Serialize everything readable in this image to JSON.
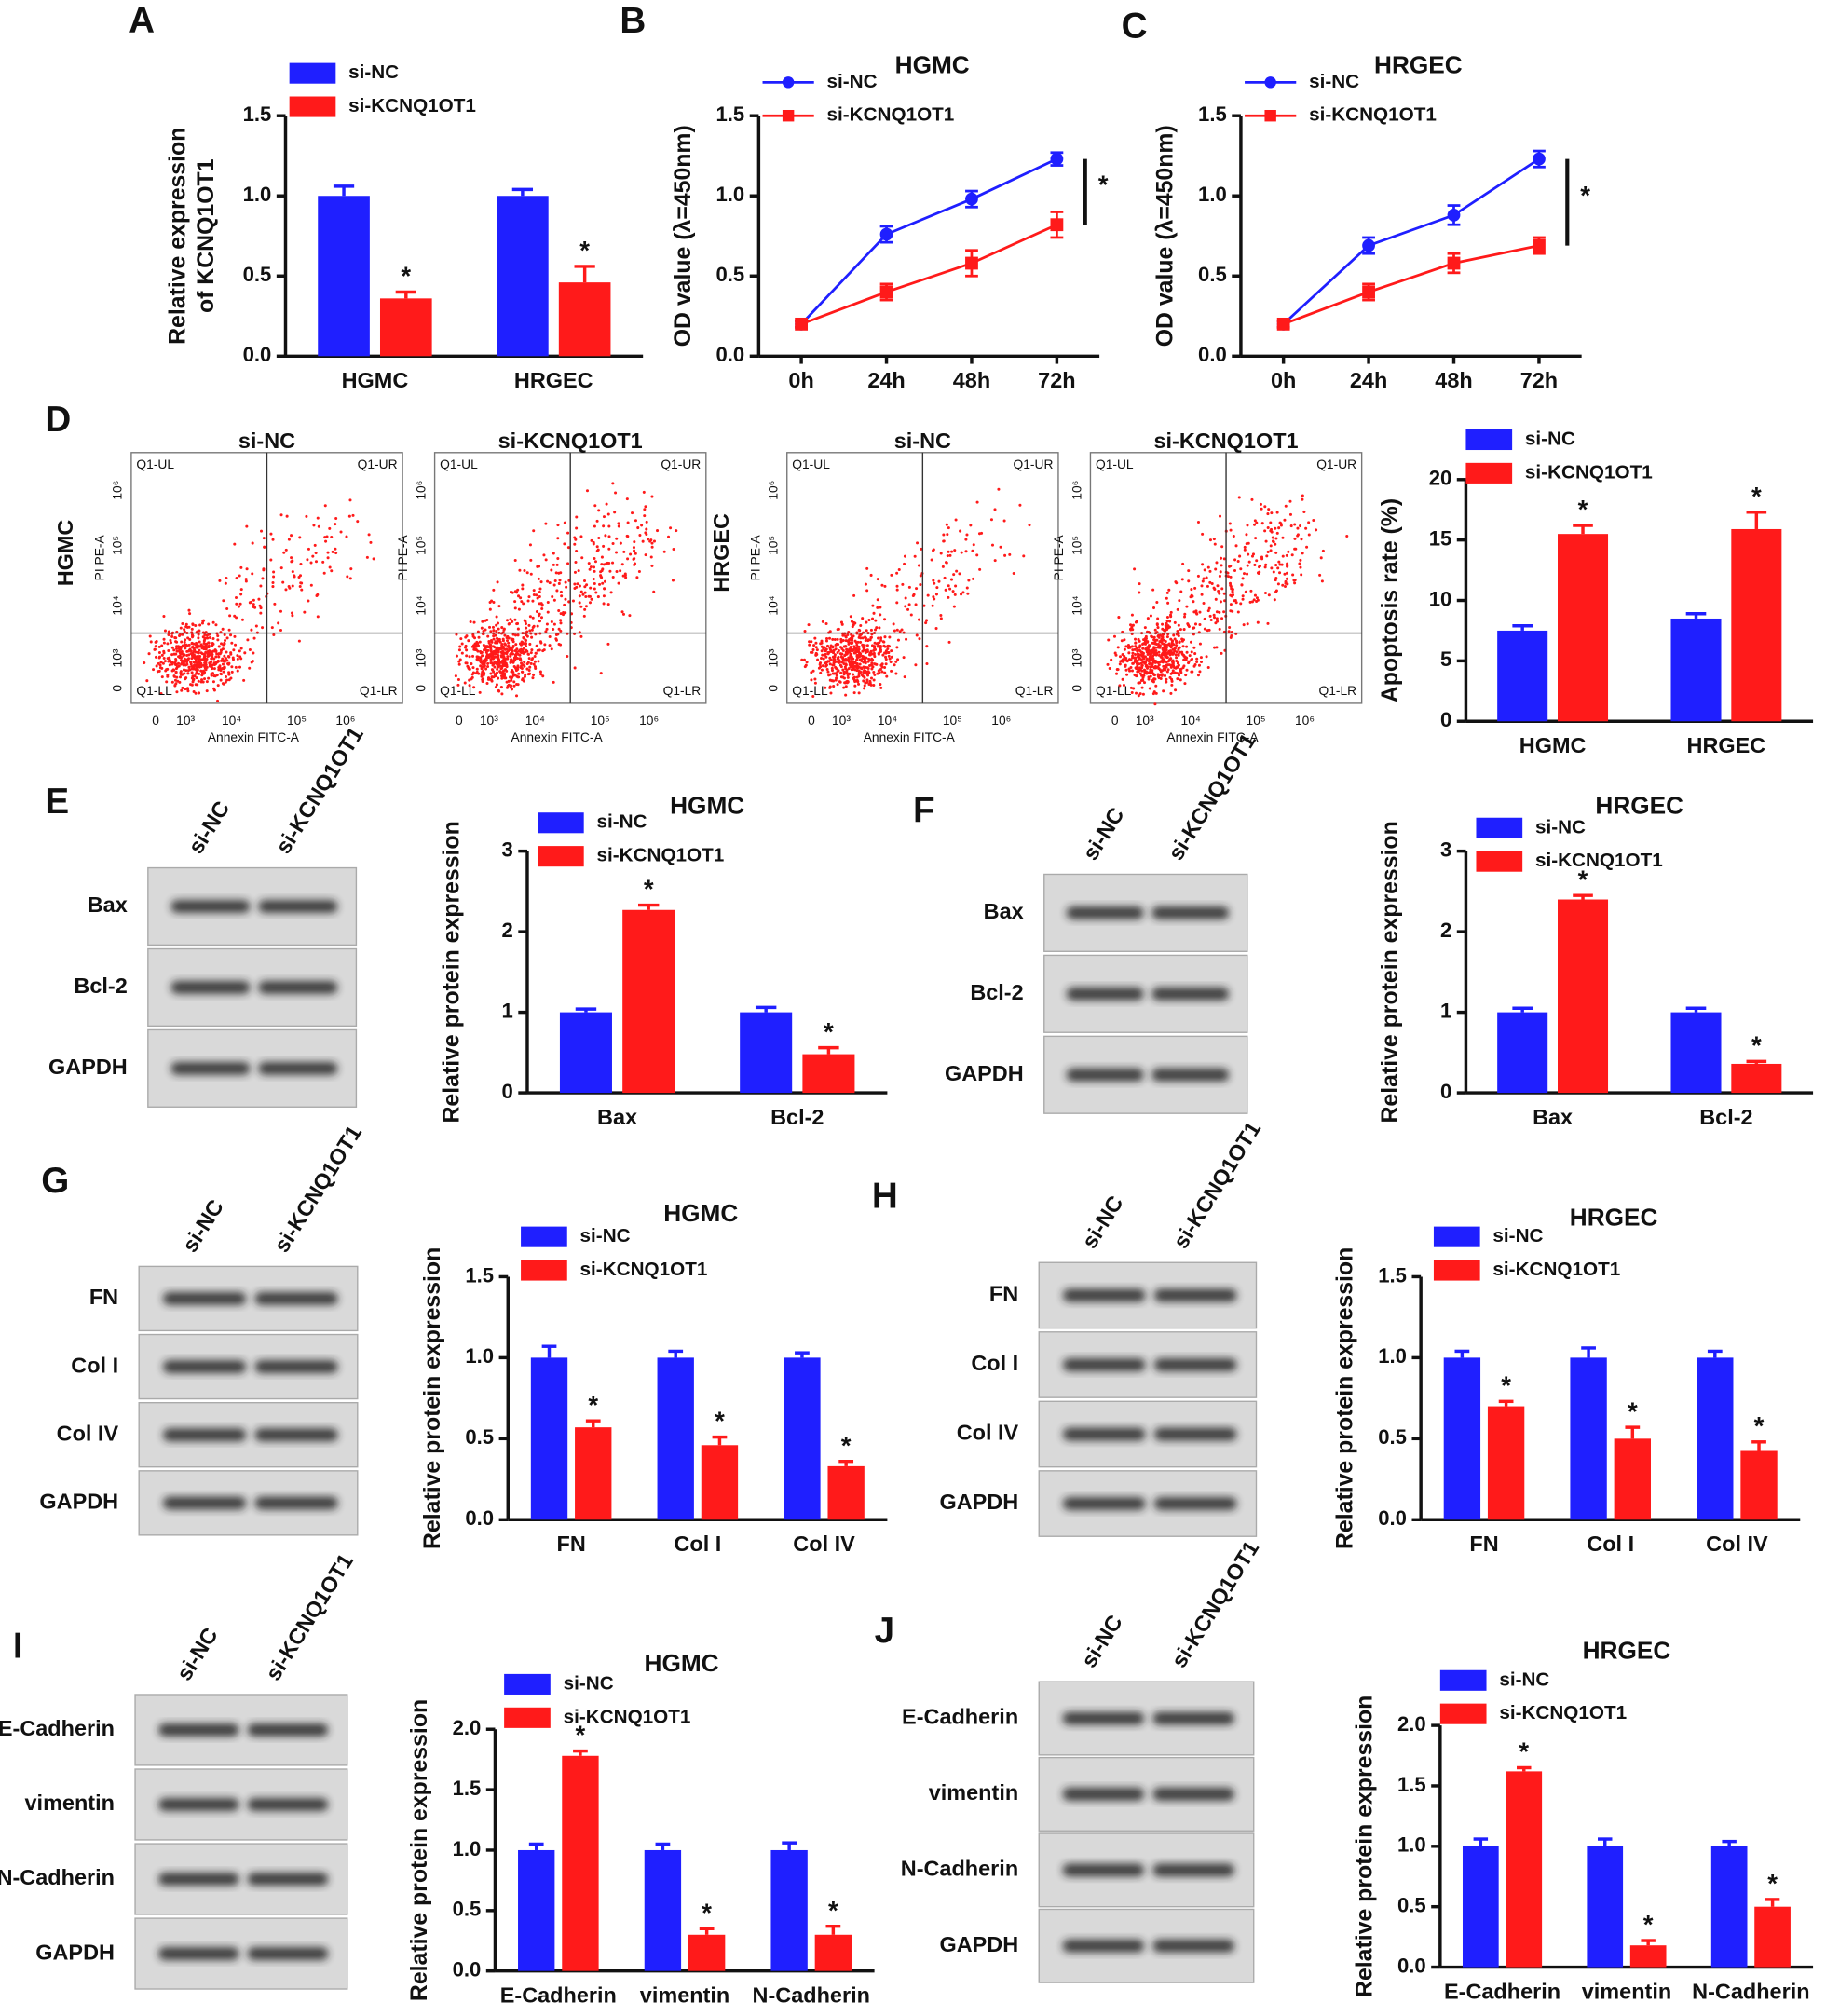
{
  "chart_data": [
    {
      "type": "bar",
      "panel": "A",
      "ylabel": [
        "Relative expression",
        "of KCNQ1OT1"
      ],
      "categories": [
        "HGMC",
        "HRGEC"
      ],
      "ylim": [
        0,
        1.5
      ],
      "yticks": [
        {
          "value": 0,
          "label": "0.0"
        },
        0.5,
        {
          "value": 1,
          "label": "1.0"
        },
        1.5
      ],
      "significance": "*",
      "series": [
        {
          "name": "si-NC",
          "color": "#1f1fff",
          "values": [
            1.0,
            1.0
          ],
          "errors": [
            0.06,
            0.04
          ]
        },
        {
          "name": "si-KCNQ1OT1",
          "color": "#ff1a1a",
          "values": [
            0.36,
            0.46
          ],
          "errors": [
            0.04,
            0.1
          ]
        }
      ]
    },
    {
      "type": "line",
      "panel": "B",
      "title": "HGMC",
      "ylabel": "OD value (λ=450nm)",
      "categories": [
        "0h",
        "24h",
        "48h",
        "72h"
      ],
      "ylim": [
        0,
        1.5
      ],
      "yticks": [
        {
          "value": 0,
          "label": "0.0"
        },
        0.5,
        {
          "value": 1,
          "label": "1.0"
        },
        1.5
      ],
      "significance": "*",
      "series": [
        {
          "name": "si-NC",
          "color": "#1f1fff",
          "marker": "circle",
          "values": [
            0.2,
            0.76,
            0.98,
            1.23
          ],
          "errors": [
            0.02,
            0.05,
            0.05,
            0.04
          ]
        },
        {
          "name": "si-KCNQ1OT1",
          "color": "#ff1a1a",
          "marker": "square",
          "values": [
            0.2,
            0.4,
            0.58,
            0.82
          ],
          "errors": [
            0.02,
            0.05,
            0.08,
            0.08
          ]
        }
      ]
    },
    {
      "type": "line",
      "panel": "C",
      "title": "HRGEC",
      "ylabel": "OD value (λ=450nm)",
      "categories": [
        "0h",
        "24h",
        "48h",
        "72h"
      ],
      "ylim": [
        0,
        1.5
      ],
      "yticks": [
        {
          "value": 0,
          "label": "0.0"
        },
        0.5,
        {
          "value": 1,
          "label": "1.0"
        },
        1.5
      ],
      "significance": "*",
      "series": [
        {
          "name": "si-NC",
          "color": "#1f1fff",
          "marker": "circle",
          "values": [
            0.2,
            0.69,
            0.88,
            1.23
          ],
          "errors": [
            0.02,
            0.05,
            0.06,
            0.05
          ]
        },
        {
          "name": "si-KCNQ1OT1",
          "color": "#ff1a1a",
          "marker": "square",
          "values": [
            0.2,
            0.4,
            0.58,
            0.69
          ],
          "errors": [
            0.02,
            0.05,
            0.06,
            0.05
          ]
        }
      ]
    },
    {
      "type": "bar",
      "panel": "D",
      "ylabel": "Apoptosis rate (%)",
      "categories": [
        "HGMC",
        "HRGEC"
      ],
      "ylim": [
        0,
        20
      ],
      "yticks": [
        0,
        5,
        10,
        15,
        20
      ],
      "significance": "*",
      "series": [
        {
          "name": "si-NC",
          "color": "#1f1fff",
          "values": [
            7.5,
            8.5
          ],
          "errors": [
            0.4,
            0.4
          ]
        },
        {
          "name": "si-KCNQ1OT1",
          "color": "#ff1a1a",
          "values": [
            15.5,
            15.9
          ],
          "errors": [
            0.7,
            1.4
          ]
        }
      ]
    },
    {
      "type": "bar",
      "panel": "E",
      "title": "HGMC",
      "ylabel": "Relative protein expression",
      "categories": [
        "Bax",
        "Bcl-2"
      ],
      "ylim": [
        0,
        3
      ],
      "yticks": [
        0,
        1,
        2,
        3
      ],
      "significance": "*",
      "series": [
        {
          "name": "si-NC",
          "color": "#1f1fff",
          "values": [
            1.0,
            1.0
          ],
          "errors": [
            0.04,
            0.06
          ]
        },
        {
          "name": "si-KCNQ1OT1",
          "color": "#ff1a1a",
          "values": [
            2.27,
            0.48
          ],
          "errors": [
            0.06,
            0.08
          ]
        }
      ]
    },
    {
      "type": "bar",
      "panel": "F",
      "title": "HRGEC",
      "ylabel": "Relative protein expression",
      "categories": [
        "Bax",
        "Bcl-2"
      ],
      "ylim": [
        0,
        3
      ],
      "yticks": [
        0,
        1,
        2,
        3
      ],
      "significance": "*",
      "series": [
        {
          "name": "si-NC",
          "color": "#1f1fff",
          "values": [
            1.0,
            1.0
          ],
          "errors": [
            0.05,
            0.05
          ]
        },
        {
          "name": "si-KCNQ1OT1",
          "color": "#ff1a1a",
          "values": [
            2.4,
            0.36
          ],
          "errors": [
            0.05,
            0.03
          ]
        }
      ]
    },
    {
      "type": "bar",
      "panel": "G",
      "title": "HGMC",
      "ylabel": "Relative protein expression",
      "categories": [
        "FN",
        "Col I",
        "Col IV"
      ],
      "ylim": [
        0,
        1.5
      ],
      "yticks": [
        {
          "value": 0,
          "label": "0.0"
        },
        0.5,
        {
          "value": 1,
          "label": "1.0"
        },
        1.5
      ],
      "significance": "*",
      "series": [
        {
          "name": "si-NC",
          "color": "#1f1fff",
          "values": [
            1.0,
            1.0,
            1.0
          ],
          "errors": [
            0.07,
            0.04,
            0.03
          ]
        },
        {
          "name": "si-KCNQ1OT1",
          "color": "#ff1a1a",
          "values": [
            0.57,
            0.46,
            0.33
          ],
          "errors": [
            0.04,
            0.05,
            0.03
          ]
        }
      ]
    },
    {
      "type": "bar",
      "panel": "H",
      "title": "HRGEC",
      "ylabel": "Relative protein expression",
      "categories": [
        "FN",
        "Col I",
        "Col IV"
      ],
      "ylim": [
        0,
        1.5
      ],
      "yticks": [
        {
          "value": 0,
          "label": "0.0"
        },
        0.5,
        {
          "value": 1,
          "label": "1.0"
        },
        1.5
      ],
      "significance": "*",
      "series": [
        {
          "name": "si-NC",
          "color": "#1f1fff",
          "values": [
            1.0,
            1.0,
            1.0
          ],
          "errors": [
            0.04,
            0.06,
            0.04
          ]
        },
        {
          "name": "si-KCNQ1OT1",
          "color": "#ff1a1a",
          "values": [
            0.7,
            0.5,
            0.43
          ],
          "errors": [
            0.03,
            0.07,
            0.05
          ]
        }
      ]
    },
    {
      "type": "bar",
      "panel": "I",
      "title": "HGMC",
      "ylabel": "Relative protein expression",
      "categories": [
        "E-Cadherin",
        "vimentin",
        "N-Cadherin"
      ],
      "ylim": [
        0,
        2
      ],
      "yticks": [
        {
          "value": 0,
          "label": "0.0"
        },
        0.5,
        {
          "value": 1,
          "label": "1.0"
        },
        1.5,
        {
          "value": 2,
          "label": "2.0"
        }
      ],
      "significance": "*",
      "series": [
        {
          "name": "si-NC",
          "color": "#1f1fff",
          "values": [
            1.0,
            1.0,
            1.0
          ],
          "errors": [
            0.05,
            0.05,
            0.06
          ]
        },
        {
          "name": "si-KCNQ1OT1",
          "color": "#ff1a1a",
          "values": [
            1.78,
            0.3,
            0.3
          ],
          "errors": [
            0.04,
            0.05,
            0.07
          ]
        }
      ]
    },
    {
      "type": "bar",
      "panel": "J",
      "title": "HRGEC",
      "ylabel": "Relative protein expression",
      "categories": [
        "E-Cadherin",
        "vimentin",
        "N-Cadherin"
      ],
      "ylim": [
        0,
        2
      ],
      "yticks": [
        {
          "value": 0,
          "label": "0.0"
        },
        0.5,
        {
          "value": 1,
          "label": "1.0"
        },
        1.5,
        {
          "value": 2,
          "label": "2.0"
        }
      ],
      "significance": "*",
      "series": [
        {
          "name": "si-NC",
          "color": "#1f1fff",
          "values": [
            1.0,
            1.0,
            1.0
          ],
          "errors": [
            0.06,
            0.06,
            0.04
          ]
        },
        {
          "name": "si-KCNQ1OT1",
          "color": "#ff1a1a",
          "values": [
            1.62,
            0.18,
            0.5
          ],
          "errors": [
            0.03,
            0.04,
            0.06
          ]
        }
      ]
    }
  ],
  "flow_cytometry": {
    "plots": [
      {
        "cell": "HGMC",
        "title": "si-NC"
      },
      {
        "title": "si-KCNQ1OT1"
      },
      {
        "cell": "HRGEC",
        "title": "si-NC"
      },
      {
        "title": "si-KCNQ1OT1"
      }
    ],
    "quadrants": [
      "Q1-UL",
      "Q1-UR",
      "Q1-LL",
      "Q1-LR"
    ],
    "x_label": "Annexin FITC-A",
    "y_label": "PI PE-A",
    "ticks": [
      "0",
      "10³",
      "10⁴",
      "10⁵",
      "10⁶"
    ]
  },
  "blots": [
    {
      "lanes": [
        "si-NC",
        "si-KCNQ1OT1"
      ],
      "rows": [
        "Bax",
        "Bcl-2",
        "GAPDH"
      ]
    },
    {
      "lanes": [
        "si-NC",
        "si-KCNQ1OT1"
      ],
      "rows": [
        "Bax",
        "Bcl-2",
        "GAPDH"
      ]
    },
    {
      "lanes": [
        "si-NC",
        "si-KCNQ1OT1"
      ],
      "rows": [
        "FN",
        "Col I",
        "Col IV",
        "GAPDH"
      ]
    },
    {
      "lanes": [
        "si-NC",
        "si-KCNQ1OT1"
      ],
      "rows": [
        "FN",
        "Col I",
        "Col IV",
        "GAPDH"
      ]
    },
    {
      "lanes": [
        "si-NC",
        "si-KCNQ1OT1"
      ],
      "rows": [
        "E-Cadherin",
        "vimentin",
        "N-Cadherin",
        "GAPDH"
      ]
    },
    {
      "lanes": [
        "si-NC",
        "si-KCNQ1OT1"
      ],
      "rows": [
        "E-Cadherin",
        "vimentin",
        "N-Cadherin",
        "GAPDH"
      ]
    }
  ]
}
